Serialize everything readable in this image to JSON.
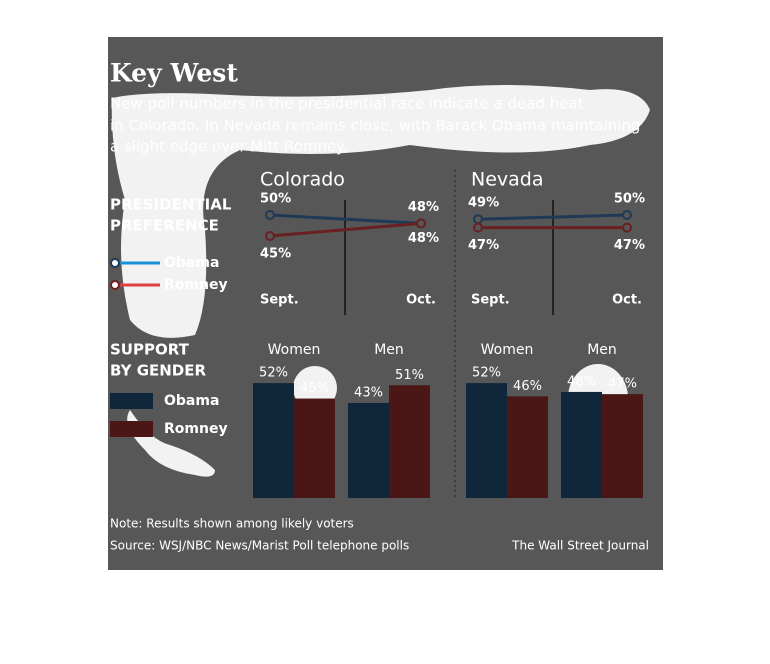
{
  "header": {
    "title": "Key West",
    "subtitle_lines": [
      "New poll numbers in the presidential race indicate a dead heat",
      "in Colorado. In Nevada remains close, with Barack Obama maintaining",
      "a slight edge over Mitt Romney."
    ]
  },
  "side_labels": {
    "preference": [
      "PRESIDENTIAL",
      "PREFERENCE"
    ],
    "gender": [
      "SUPPORT",
      "BY GENDER"
    ]
  },
  "chart_data": [
    {
      "type": "line",
      "title": "Colorado",
      "categories": [
        "Sept.",
        "Oct."
      ],
      "series": [
        {
          "name": "Obama",
          "color": "#1e3a56",
          "values": [
            50,
            48
          ],
          "value_labels": [
            "50%",
            "48%"
          ]
        },
        {
          "name": "Romney",
          "color": "#6a2020",
          "values": [
            45,
            48
          ],
          "value_labels": [
            "45%",
            "48%"
          ]
        }
      ]
    },
    {
      "type": "line",
      "title": "Nevada",
      "categories": [
        "Sept.",
        "Oct."
      ],
      "series": [
        {
          "name": "Obama",
          "color": "#1e3a56",
          "values": [
            49,
            50
          ],
          "value_labels": [
            "49%",
            "50%"
          ]
        },
        {
          "name": "Romney",
          "color": "#6a2020",
          "values": [
            47,
            47
          ],
          "value_labels": [
            "47%",
            "47%"
          ]
        }
      ]
    },
    {
      "type": "bar",
      "categories": [
        "Women",
        "Men"
      ],
      "series": [
        {
          "name": "Obama",
          "color": "#10263a",
          "values": [
            52,
            43
          ],
          "value_labels": [
            "52%",
            "43%"
          ]
        },
        {
          "name": "Romney",
          "color": "#4a1616",
          "values": [
            45,
            51
          ],
          "value_labels": [
            "45%",
            "51%"
          ]
        }
      ]
    },
    {
      "type": "bar",
      "categories": [
        "Women",
        "Men"
      ],
      "series": [
        {
          "name": "Obama",
          "color": "#10263a",
          "values": [
            52,
            48
          ],
          "value_labels": [
            "52%",
            "48%"
          ]
        },
        {
          "name": "Romney",
          "color": "#4a1616",
          "values": [
            46,
            47
          ],
          "value_labels": [
            "46%",
            "47%"
          ]
        }
      ]
    }
  ],
  "footer": {
    "note": "Note: Results shown among likely voters",
    "source": "Source: WSJ/NBC News/Marist Poll telephone polls",
    "credit": "The Wall Street Journal"
  }
}
